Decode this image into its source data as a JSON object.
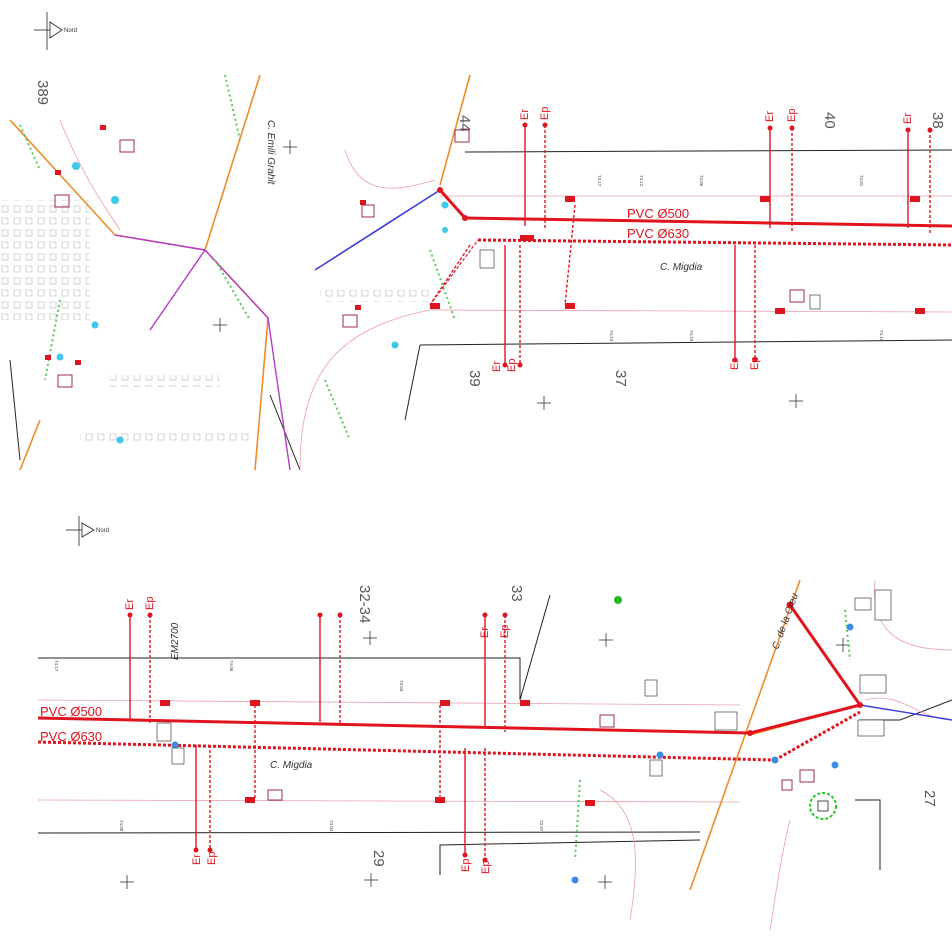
{
  "north_label": "Nord",
  "top_panel": {
    "pipe_labels": [
      "PVC Ø500",
      "PVC Ø630"
    ],
    "streets": [
      "C. Migdia",
      "C. Emili Grahit"
    ],
    "house_numbers": [
      "389",
      "44",
      "40",
      "38",
      "39",
      "37"
    ],
    "drop_labels": [
      "Er",
      "Ep"
    ]
  },
  "bottom_panel": {
    "pipe_labels": [
      "PVC Ø500",
      "PVC Ø630"
    ],
    "streets": [
      "C. Migdia",
      "C. de la Creu"
    ],
    "house_numbers": [
      "32-34",
      "33",
      "29",
      "27"
    ],
    "drop_labels": [
      "Er",
      "Ep"
    ],
    "manhole_code": "EM2700"
  },
  "colors": {
    "pipe_red": "#e0141e",
    "gas_orange": "#f08c28",
    "water_purple": "#b43cc8",
    "fiber_blue": "#3c3cdc",
    "vegetation_green": "#5ac85a",
    "base_black": "#222222"
  }
}
